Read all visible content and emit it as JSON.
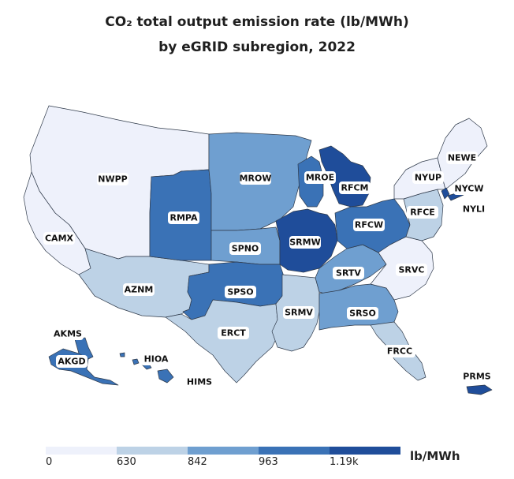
{
  "title_line1": "CO₂ total output emission rate (lb/MWh)",
  "title_line2": "by eGRID subregion, 2022",
  "legend": {
    "unit": "lb/MWh",
    "ticks": [
      "0",
      "630",
      "842",
      "963",
      "1.19k"
    ],
    "colors": [
      "#eef1fb",
      "#bdd2e6",
      "#6f9fd0",
      "#3a72b6",
      "#1f4d9a"
    ]
  },
  "regions": {
    "NWPP": "NWPP",
    "CAMX": "CAMX",
    "AZNM": "AZNM",
    "RMPA": "RMPA",
    "MROW": "MROW",
    "SPNO": "SPNO",
    "SPSO": "SPSO",
    "ERCT": "ERCT",
    "MROE": "MROE",
    "RFCM": "RFCM",
    "SRMW": "SRMW",
    "SRMV": "SRMV",
    "RFCW": "RFCW",
    "SRTV": "SRTV",
    "SRSO": "SRSO",
    "SRVC": "SRVC",
    "FRCC": "FRCC",
    "RFCE": "RFCE",
    "NYUP": "NYUP",
    "NEWE": "NEWE",
    "NYCW": "NYCW",
    "NYLI": "NYLI",
    "AKMS": "AKMS",
    "AKGD": "AKGD",
    "HIOA": "HIOA",
    "HIMS": "HIMS",
    "PRMS": "PRMS"
  },
  "region_colors": {
    "lightest": "#eef1fb",
    "light": "#bdd2e6",
    "medium": "#6f9fd0",
    "dark": "#3a72b6",
    "darkest": "#1f4d9a",
    "border": "#2f3a4a"
  }
}
